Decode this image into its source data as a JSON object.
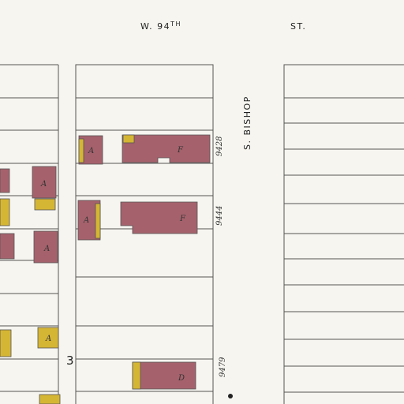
{
  "street_top": {
    "name": "W. 94",
    "suffix": "TH",
    "type": "ST."
  },
  "street_side": "S. BISHOP",
  "block_number": "3",
  "addresses": [
    "9428",
    "9444",
    "9479"
  ],
  "building_labels": [
    "A",
    "F",
    "A",
    "F",
    "A",
    "A",
    "A",
    "D"
  ]
}
